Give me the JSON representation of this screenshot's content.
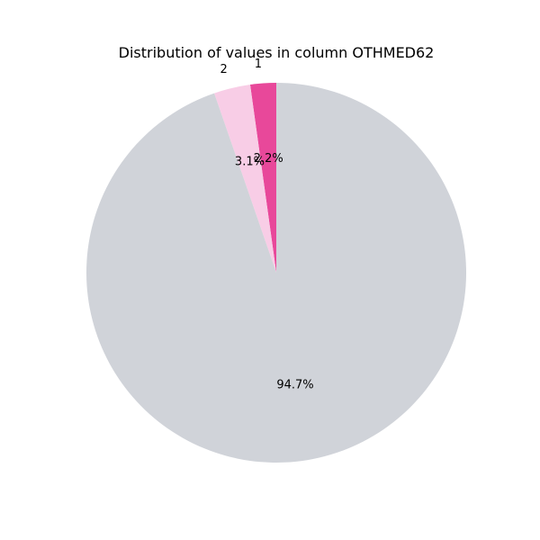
{
  "chart_data": {
    "type": "pie",
    "title": "Distribution of values in column OTHMED62",
    "slices": [
      {
        "label": "1",
        "value": 2.2,
        "pct_label": "2.2%",
        "color": "#e8489a"
      },
      {
        "label": "2",
        "value": 3.1,
        "pct_label": "3.1%",
        "color": "#f8cde6"
      },
      {
        "label": "",
        "value": 94.7,
        "pct_label": "94.7%",
        "color": "#d0d3d9"
      }
    ],
    "start_angle": "top",
    "direction": "counterclockwise"
  }
}
